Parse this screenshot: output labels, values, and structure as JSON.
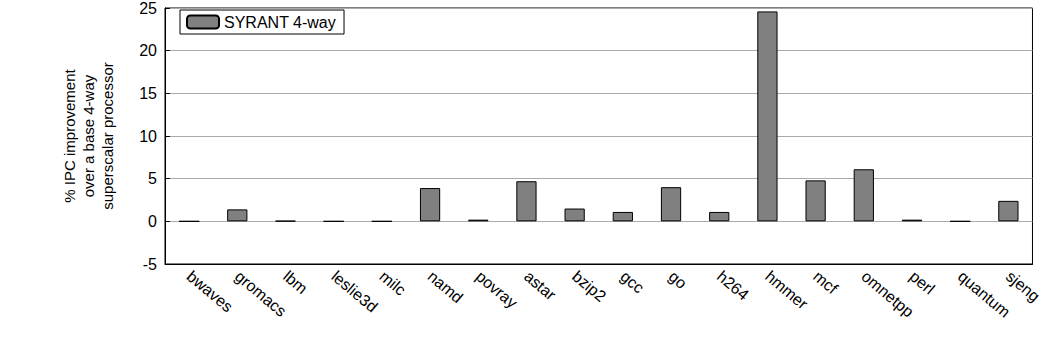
{
  "chart_data": {
    "type": "bar",
    "y_label": "% IPC improvement\nover a base 4-way\nsuperscalar processor",
    "categories": [
      "bwaves",
      "gromacs",
      "lbm",
      "leslie3d",
      "milc",
      "namd",
      "povray",
      "astar",
      "bzip2",
      "gcc",
      "go",
      "h264",
      "hmmer",
      "mcf",
      "omnetpp",
      "perl",
      "quantum",
      "sjeng"
    ],
    "series": [
      {
        "name": "SYRANT 4-way",
        "color": "#808080",
        "values": [
          0,
          1.4,
          0.05,
          0,
          0,
          3.9,
          0.2,
          4.7,
          1.5,
          1.1,
          4.0,
          1.1,
          24.6,
          4.8,
          6.1,
          0.2,
          0,
          2.4
        ]
      }
    ],
    "ylim": [
      -5,
      25
    ],
    "yticks": [
      -5,
      0,
      5,
      10,
      15,
      20,
      25
    ],
    "grid": true,
    "legend": "upper left"
  }
}
